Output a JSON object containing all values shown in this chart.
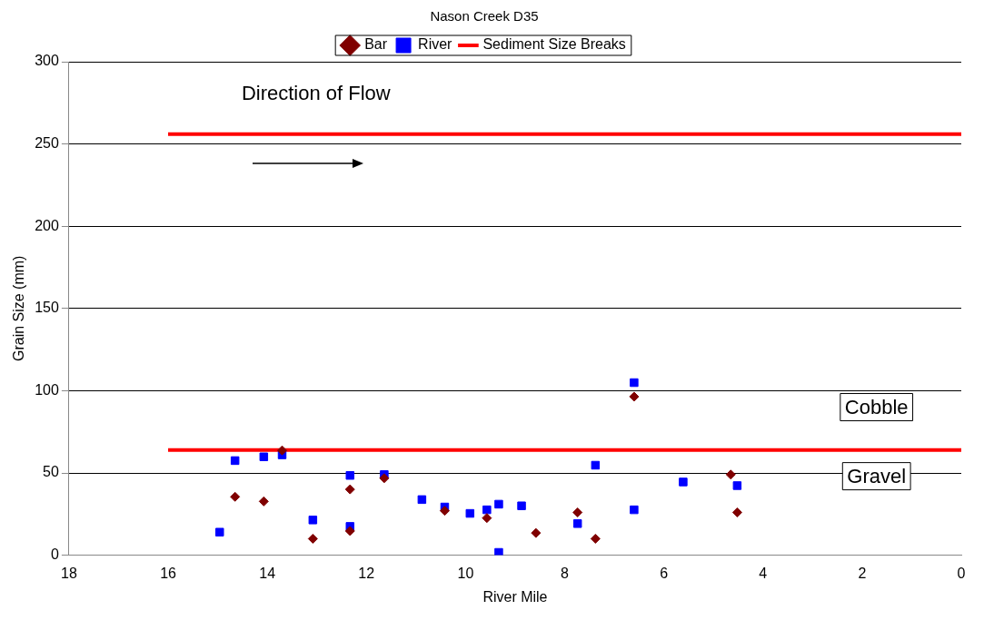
{
  "chart_data": {
    "type": "scatter",
    "title": "Nason Creek D35",
    "xlabel": "River Mile",
    "ylabel": "Grain Size (mm)",
    "xlim": [
      18,
      0
    ],
    "xticks": [
      18,
      16,
      14,
      12,
      10,
      8,
      6,
      4,
      2,
      0
    ],
    "ylim": [
      0,
      300
    ],
    "yticks": [
      0,
      50,
      100,
      150,
      200,
      250,
      300
    ],
    "grid": "y",
    "legend": "top",
    "annotations": [
      "Direction of Flow",
      "Cobble",
      "Gravel"
    ],
    "series": [
      {
        "name": "Bar",
        "color": "#800000",
        "marker": "diamond",
        "x": [
          14.65,
          14.07,
          13.7,
          13.08,
          12.33,
          12.33,
          11.64,
          10.42,
          9.57,
          8.58,
          7.74,
          7.38,
          6.6,
          4.65,
          4.52
        ],
        "values": [
          35.5,
          32.7,
          63.7,
          10,
          40,
          14.7,
          46.8,
          27,
          22.6,
          13.5,
          26,
          10,
          96.4,
          49,
          26
        ]
      },
      {
        "name": "River",
        "color": "#0000ff",
        "marker": "square",
        "x": [
          14.96,
          14.65,
          14.07,
          13.7,
          13.08,
          12.33,
          12.33,
          11.64,
          10.88,
          10.42,
          9.91,
          9.57,
          9.33,
          9.33,
          8.87,
          7.74,
          7.38,
          6.6,
          6.6,
          5.61,
          4.52
        ],
        "values": [
          14,
          57.5,
          59.8,
          61,
          21.4,
          48.5,
          17.5,
          49,
          33.8,
          29.3,
          25.4,
          27.6,
          31,
          1.7,
          30,
          19.2,
          54.7,
          104.9,
          27.6,
          44.5,
          42.3
        ]
      },
      {
        "name": "Sediment Size Breaks",
        "type": "line",
        "color": "#ff0000",
        "marker": "none",
        "x": [
          16,
          0
        ],
        "values": [
          256,
          256
        ]
      },
      {
        "type": "line",
        "color": "#ff0000",
        "marker": "none",
        "x": [
          16,
          0
        ],
        "values": [
          64,
          64
        ]
      }
    ]
  }
}
